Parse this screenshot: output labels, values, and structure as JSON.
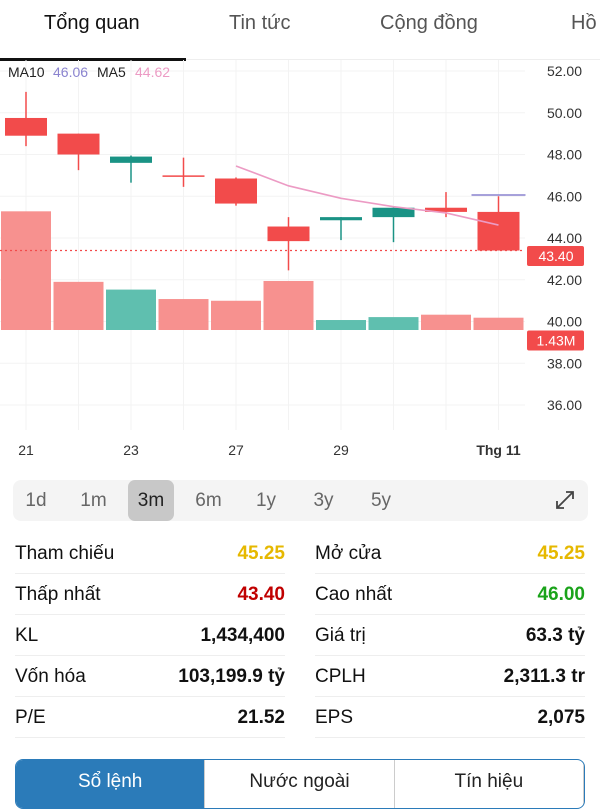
{
  "tabs": [
    {
      "label": "Tổng quan",
      "active": true
    },
    {
      "label": "Tin tức"
    },
    {
      "label": "Cộng đồng"
    },
    {
      "label": "Hồ"
    }
  ],
  "legend": {
    "ma10_label": "MA10",
    "ma10_value": "46.06",
    "ma5_label": "MA5",
    "ma5_value": "44.62"
  },
  "colors": {
    "down": "#f24b4b",
    "up": "#1a9385",
    "vol_down": "#f7918f",
    "vol_up": "#5fbfaf",
    "ma5": "#ec9bc4",
    "ma10": "#8a83cf",
    "ref": "#e6b800",
    "low": "#c00000",
    "high": "#1aa31a",
    "accent": "#2b7bb9"
  },
  "chart_data": {
    "type": "candlestick",
    "y_ticks": [
      "52.00",
      "50.00",
      "48.00",
      "46.00",
      "44.00",
      "42.00",
      "40.00",
      "38.00",
      "36.00"
    ],
    "ylim": [
      36,
      52
    ],
    "x_tick_labels": [
      {
        "index": 0,
        "label": "21"
      },
      {
        "index": 2,
        "label": "23"
      },
      {
        "index": 4,
        "label": "27"
      },
      {
        "index": 6,
        "label": "29"
      },
      {
        "index": 9,
        "label": "Thg 11"
      }
    ],
    "candles": [
      {
        "open": 49.75,
        "close": 48.9,
        "high": 51.0,
        "low": 48.4,
        "volume": 13.8
      },
      {
        "open": 49.0,
        "close": 48.0,
        "high": 49.0,
        "low": 47.25,
        "volume": 5.6
      },
      {
        "open": 47.6,
        "close": 47.9,
        "high": 47.95,
        "low": 46.65,
        "volume": 4.7
      },
      {
        "open": 47.0,
        "close": 47.0,
        "high": 47.85,
        "low": 46.45,
        "volume": 3.6
      },
      {
        "open": 46.85,
        "close": 45.65,
        "high": 46.9,
        "low": 45.55,
        "volume": 3.4
      },
      {
        "open": 44.55,
        "close": 43.85,
        "high": 45.0,
        "low": 42.45,
        "volume": 5.7
      },
      {
        "open": 44.85,
        "close": 45.0,
        "high": 45.0,
        "low": 43.9,
        "volume": 1.16
      },
      {
        "open": 45.0,
        "close": 45.45,
        "high": 45.45,
        "low": 43.8,
        "volume": 1.5
      },
      {
        "open": 45.45,
        "close": 45.25,
        "high": 46.2,
        "low": 45.0,
        "volume": 1.78
      },
      {
        "open": 45.25,
        "close": 43.4,
        "high": 46.0,
        "low": 43.4,
        "volume": 1.43
      }
    ],
    "ma5": [
      null,
      null,
      null,
      null,
      47.45,
      46.5,
      45.9,
      45.5,
      45.2,
      44.62
    ],
    "ma10": [
      null,
      null,
      null,
      null,
      null,
      null,
      null,
      null,
      null,
      46.06
    ],
    "last_price": "43.40",
    "last_volume": "1.43M",
    "volume_unit": "M"
  },
  "ranges": [
    {
      "label": "1d"
    },
    {
      "label": "1m"
    },
    {
      "label": "3m",
      "active": true
    },
    {
      "label": "6m"
    },
    {
      "label": "1y"
    },
    {
      "label": "3y"
    },
    {
      "label": "5y"
    }
  ],
  "stats": [
    {
      "label": "Tham chiếu",
      "value": "45.25",
      "color": "ref"
    },
    {
      "label": "Mở cửa",
      "value": "45.25",
      "color": "ref"
    },
    {
      "label": "Thấp nhất",
      "value": "43.40",
      "color": "low"
    },
    {
      "label": "Cao nhất",
      "value": "46.00",
      "color": "high"
    },
    {
      "label": "KL",
      "value": "1,434,400"
    },
    {
      "label": "Giá trị",
      "value": "63.3 tỷ"
    },
    {
      "label": "Vốn hóa",
      "value": "103,199.9 tỷ"
    },
    {
      "label": "CPLH",
      "value": "2,311.3 tr"
    },
    {
      "label": "P/E",
      "value": "21.52"
    },
    {
      "label": "EPS",
      "value": "2,075"
    }
  ],
  "bottom_tabs": [
    {
      "label": "Sổ lệnh",
      "active": true
    },
    {
      "label": "Nước ngoài"
    },
    {
      "label": "Tín hiệu"
    }
  ]
}
